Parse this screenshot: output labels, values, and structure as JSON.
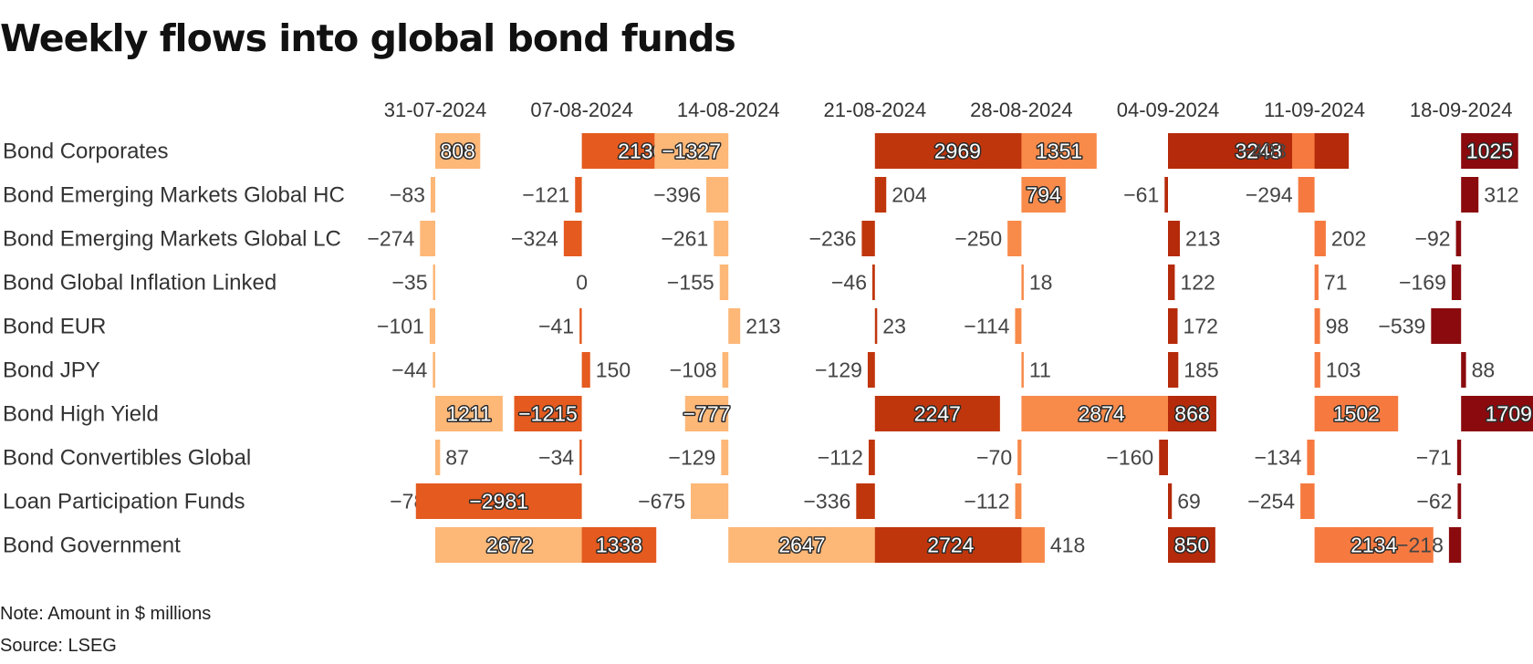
{
  "title": "Weekly flows into global bond funds",
  "note": "Note: Amount in $ millions",
  "source": "Source: LSEG",
  "colors": {
    "2024-07-31": "#fdb777",
    "2024-08-07": "#e45a1f",
    "2024-08-14": "#fdb777",
    "2024-08-21": "#c0360c",
    "2024-08-28": "#f88a4a",
    "2024-09-04": "#b52a0a",
    "2024-09-11": "#f67a40",
    "2024-09-18": "#8a0a0e"
  },
  "chart_data": {
    "type": "bar",
    "layout": "small-multiples table (rows = fund categories, columns = weeks)",
    "unit": "$ millions",
    "columns": [
      "31-07-2024",
      "07-08-2024",
      "14-08-2024",
      "21-08-2024",
      "28-08-2024",
      "04-09-2024",
      "11-09-2024",
      "18-09-2024"
    ],
    "rows": [
      {
        "name": "Bond Corporates",
        "values": [
          808,
          2136,
          -1327,
          2969,
          1351,
          3248,
          -403,
          1025
        ]
      },
      {
        "name": "Bond Emerging Markets Global HC",
        "values": [
          -83,
          -121,
          -396,
          204,
          794,
          -61,
          -294,
          312
        ]
      },
      {
        "name": "Bond Emerging Markets Global LC",
        "values": [
          -274,
          -324,
          -261,
          -236,
          -250,
          213,
          202,
          -92
        ]
      },
      {
        "name": "Bond Global Inflation Linked",
        "values": [
          -35,
          0,
          -155,
          -46,
          18,
          122,
          71,
          -169
        ]
      },
      {
        "name": "Bond EUR",
        "values": [
          -101,
          -41,
          213,
          23,
          -114,
          172,
          98,
          -539
        ]
      },
      {
        "name": "Bond JPY",
        "values": [
          -44,
          150,
          -108,
          -129,
          11,
          185,
          103,
          88
        ]
      },
      {
        "name": "Bond High Yield",
        "values": [
          1211,
          -1215,
          -777,
          2247,
          2874,
          868,
          1502,
          1709
        ]
      },
      {
        "name": "Bond Convertibles Global",
        "values": [
          87,
          -34,
          -129,
          -112,
          -70,
          -160,
          -134,
          -71
        ]
      },
      {
        "name": "Loan Participation Funds",
        "values": [
          -78,
          -2981,
          -675,
          -336,
          -112,
          69,
          -254,
          -62
        ]
      },
      {
        "name": "Bond Government",
        "values": [
          2672,
          1338,
          2647,
          2724,
          418,
          850,
          2134,
          -218
        ]
      }
    ]
  }
}
